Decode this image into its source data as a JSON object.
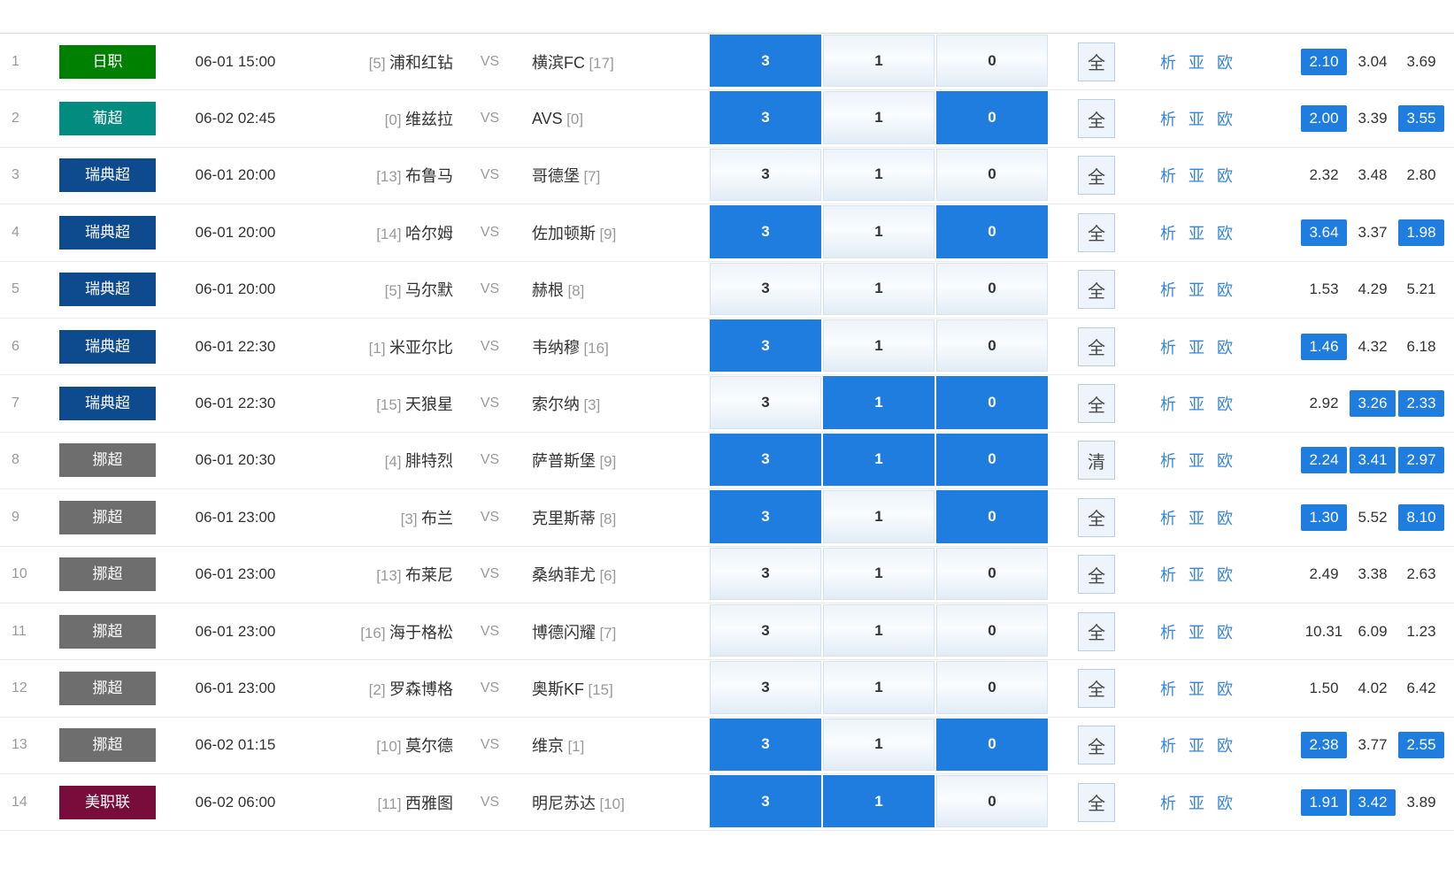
{
  "vs_label": "VS",
  "bet_options": [
    "3",
    "1",
    "0"
  ],
  "links": [
    "析",
    "亚",
    "欧"
  ],
  "action_labels": {
    "all": "全",
    "clear": "清"
  },
  "colors": {
    "selected_blue": "#1f7de0",
    "link_blue": "#3585dc",
    "leagues": {
      "日职": "#008000",
      "葡超": "#028c80",
      "瑞典超": "#0d4a8e",
      "挪超": "#6e6e6e",
      "美职联": "#780c3a"
    }
  },
  "rows": [
    {
      "num": "1",
      "league": "日职",
      "time": "06-01 15:00",
      "home_rank": "[5]",
      "home": "浦和红钻",
      "away": "横滨FC",
      "away_rank": "[17]",
      "selected": [
        true,
        false,
        false
      ],
      "action": "全",
      "odds": [
        {
          "value": "2.10",
          "hl": true
        },
        {
          "value": "3.04",
          "hl": false
        },
        {
          "value": "3.69",
          "hl": false
        }
      ]
    },
    {
      "num": "2",
      "league": "葡超",
      "time": "06-02 02:45",
      "home_rank": "[0]",
      "home": "维兹拉",
      "away": "AVS",
      "away_rank": "[0]",
      "selected": [
        true,
        false,
        true
      ],
      "action": "全",
      "odds": [
        {
          "value": "2.00",
          "hl": true
        },
        {
          "value": "3.39",
          "hl": false
        },
        {
          "value": "3.55",
          "hl": true
        }
      ]
    },
    {
      "num": "3",
      "league": "瑞典超",
      "time": "06-01 20:00",
      "home_rank": "[13]",
      "home": "布鲁马",
      "away": "哥德堡",
      "away_rank": "[7]",
      "selected": [
        false,
        false,
        false
      ],
      "action": "全",
      "odds": [
        {
          "value": "2.32",
          "hl": false
        },
        {
          "value": "3.48",
          "hl": false
        },
        {
          "value": "2.80",
          "hl": false
        }
      ]
    },
    {
      "num": "4",
      "league": "瑞典超",
      "time": "06-01 20:00",
      "home_rank": "[14]",
      "home": "哈尔姆",
      "away": "佐加顿斯",
      "away_rank": "[9]",
      "selected": [
        true,
        false,
        true
      ],
      "action": "全",
      "odds": [
        {
          "value": "3.64",
          "hl": true
        },
        {
          "value": "3.37",
          "hl": false
        },
        {
          "value": "1.98",
          "hl": true
        }
      ]
    },
    {
      "num": "5",
      "league": "瑞典超",
      "time": "06-01 20:00",
      "home_rank": "[5]",
      "home": "马尔默",
      "away": "赫根",
      "away_rank": "[8]",
      "selected": [
        false,
        false,
        false
      ],
      "action": "全",
      "odds": [
        {
          "value": "1.53",
          "hl": false
        },
        {
          "value": "4.29",
          "hl": false
        },
        {
          "value": "5.21",
          "hl": false
        }
      ]
    },
    {
      "num": "6",
      "league": "瑞典超",
      "time": "06-01 22:30",
      "home_rank": "[1]",
      "home": "米亚尔比",
      "away": "韦纳穆",
      "away_rank": "[16]",
      "selected": [
        true,
        false,
        false
      ],
      "action": "全",
      "odds": [
        {
          "value": "1.46",
          "hl": true
        },
        {
          "value": "4.32",
          "hl": false
        },
        {
          "value": "6.18",
          "hl": false
        }
      ]
    },
    {
      "num": "7",
      "league": "瑞典超",
      "time": "06-01 22:30",
      "home_rank": "[15]",
      "home": "天狼星",
      "away": "索尔纳",
      "away_rank": "[3]",
      "selected": [
        false,
        true,
        true
      ],
      "action": "全",
      "odds": [
        {
          "value": "2.92",
          "hl": false
        },
        {
          "value": "3.26",
          "hl": true
        },
        {
          "value": "2.33",
          "hl": true
        }
      ]
    },
    {
      "num": "8",
      "league": "挪超",
      "time": "06-01 20:30",
      "home_rank": "[4]",
      "home": "腓特烈",
      "away": "萨普斯堡",
      "away_rank": "[9]",
      "selected": [
        true,
        true,
        true
      ],
      "action": "清",
      "odds": [
        {
          "value": "2.24",
          "hl": true
        },
        {
          "value": "3.41",
          "hl": true
        },
        {
          "value": "2.97",
          "hl": true
        }
      ]
    },
    {
      "num": "9",
      "league": "挪超",
      "time": "06-01 23:00",
      "home_rank": "[3]",
      "home": "布兰",
      "away": "克里斯蒂",
      "away_rank": "[8]",
      "selected": [
        true,
        false,
        true
      ],
      "action": "全",
      "odds": [
        {
          "value": "1.30",
          "hl": true
        },
        {
          "value": "5.52",
          "hl": false
        },
        {
          "value": "8.10",
          "hl": true
        }
      ]
    },
    {
      "num": "10",
      "league": "挪超",
      "time": "06-01 23:00",
      "home_rank": "[13]",
      "home": "布莱尼",
      "away": "桑纳菲尤",
      "away_rank": "[6]",
      "selected": [
        false,
        false,
        false
      ],
      "action": "全",
      "odds": [
        {
          "value": "2.49",
          "hl": false
        },
        {
          "value": "3.38",
          "hl": false
        },
        {
          "value": "2.63",
          "hl": false
        }
      ]
    },
    {
      "num": "11",
      "league": "挪超",
      "time": "06-01 23:00",
      "home_rank": "[16]",
      "home": "海于格松",
      "away": "博德闪耀",
      "away_rank": "[7]",
      "selected": [
        false,
        false,
        false
      ],
      "action": "全",
      "odds": [
        {
          "value": "10.31",
          "hl": false
        },
        {
          "value": "6.09",
          "hl": false
        },
        {
          "value": "1.23",
          "hl": false
        }
      ]
    },
    {
      "num": "12",
      "league": "挪超",
      "time": "06-01 23:00",
      "home_rank": "[2]",
      "home": "罗森博格",
      "away": "奥斯KF",
      "away_rank": "[15]",
      "selected": [
        false,
        false,
        false
      ],
      "action": "全",
      "odds": [
        {
          "value": "1.50",
          "hl": false
        },
        {
          "value": "4.02",
          "hl": false
        },
        {
          "value": "6.42",
          "hl": false
        }
      ]
    },
    {
      "num": "13",
      "league": "挪超",
      "time": "06-02 01:15",
      "home_rank": "[10]",
      "home": "莫尔德",
      "away": "维京",
      "away_rank": "[1]",
      "selected": [
        true,
        false,
        true
      ],
      "action": "全",
      "odds": [
        {
          "value": "2.38",
          "hl": true
        },
        {
          "value": "3.77",
          "hl": false
        },
        {
          "value": "2.55",
          "hl": true
        }
      ]
    },
    {
      "num": "14",
      "league": "美职联",
      "time": "06-02 06:00",
      "home_rank": "[11]",
      "home": "西雅图",
      "away": "明尼苏达",
      "away_rank": "[10]",
      "selected": [
        true,
        true,
        false
      ],
      "action": "全",
      "odds": [
        {
          "value": "1.91",
          "hl": true
        },
        {
          "value": "3.42",
          "hl": true
        },
        {
          "value": "3.89",
          "hl": false
        }
      ]
    }
  ]
}
